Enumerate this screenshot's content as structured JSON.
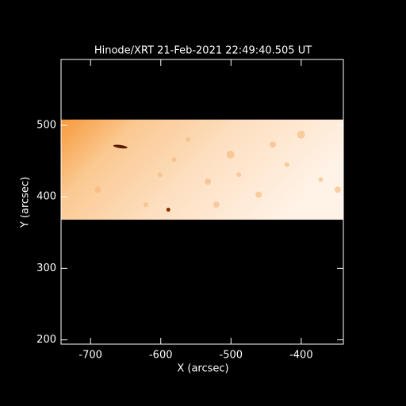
{
  "chart_data": {
    "type": "image",
    "title": "Hinode/XRT 21-Feb-2021 22:49:40.505 UT",
    "x_label": "X (arcsec)",
    "y_label": "Y (arcsec)",
    "xlim": [
      -742,
      -340
    ],
    "ylim": [
      194,
      592
    ],
    "xticks": [
      -700,
      -600,
      -500,
      -400
    ],
    "yticks": [
      200,
      300,
      400,
      500
    ],
    "image": {
      "xrange": [
        -742,
        -340
      ],
      "yrange": [
        368,
        508
      ]
    }
  }
}
